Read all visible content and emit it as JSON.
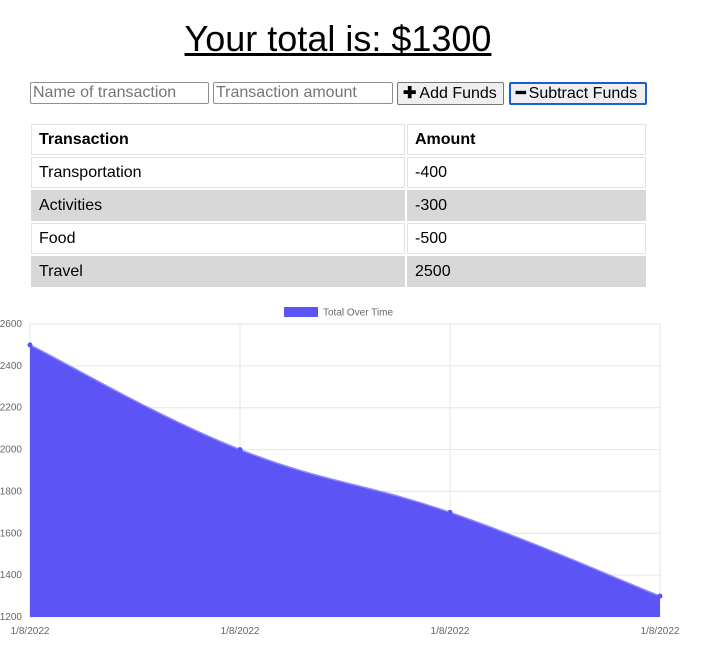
{
  "header": {
    "title": "Your total is: $1300"
  },
  "form": {
    "name_placeholder": "Name of transaction",
    "amount_placeholder": "Transaction amount",
    "add_label": "Add Funds",
    "subtract_label": "Subtract Funds",
    "add_icon": "plus-icon",
    "subtract_icon": "minus-icon"
  },
  "table": {
    "headers": [
      "Transaction",
      "Amount"
    ],
    "rows": [
      [
        "Transportation",
        "-400"
      ],
      [
        "Activities",
        "-300"
      ],
      [
        "Food",
        "-500"
      ],
      [
        "Travel",
        "2500"
      ]
    ]
  },
  "colors": {
    "series_fill": "#5c54f5",
    "grid": "#e6e6e6",
    "row_alt": "#d8d8d8"
  },
  "chart_data": {
    "type": "area",
    "x": [
      "1/8/2022",
      "1/8/2022",
      "1/8/2022",
      "1/8/2022"
    ],
    "series": [
      {
        "name": "Total Over Time",
        "values": [
          2500,
          2000,
          1700,
          1300
        ]
      }
    ],
    "yticks": [
      1200,
      1400,
      1600,
      1800,
      2000,
      2200,
      2400,
      2600
    ],
    "ylim": [
      1200,
      2600
    ],
    "grid": true,
    "legend": "top-center"
  }
}
